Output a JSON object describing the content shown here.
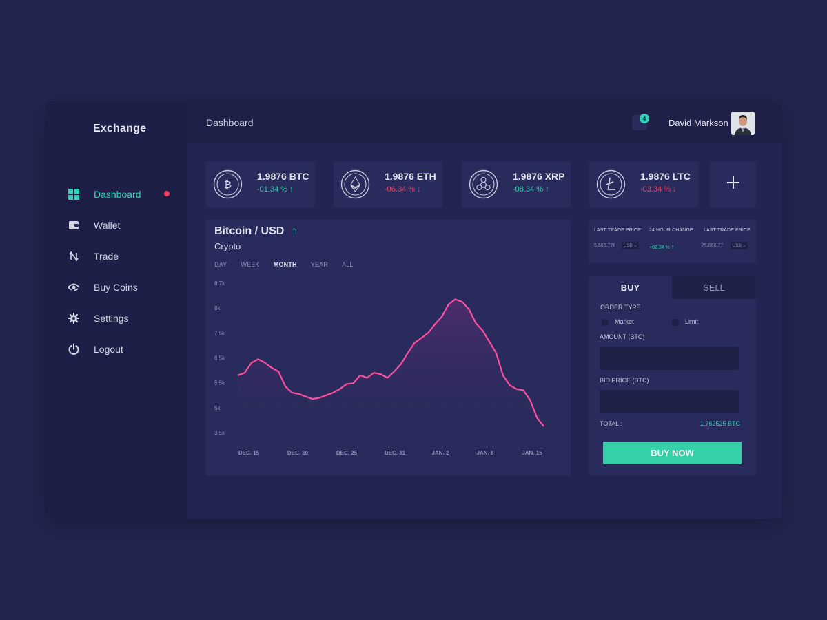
{
  "app": {
    "brand": "Exchange"
  },
  "sidebar": {
    "items": [
      {
        "label": "Dashboard",
        "icon": "grid-icon",
        "active": true
      },
      {
        "label": "Wallet",
        "icon": "wallet-icon"
      },
      {
        "label": "Trade",
        "icon": "trade-arrows-icon"
      },
      {
        "label": "Buy Coins",
        "icon": "eye-coin-icon"
      },
      {
        "label": "Settings",
        "icon": "gear-icon"
      },
      {
        "label": "Logout",
        "icon": "power-icon"
      }
    ]
  },
  "header": {
    "title": "Dashboard",
    "notification_count": "4",
    "user_name": "David Markson"
  },
  "coins": [
    {
      "amount": "1.9876 BTC",
      "change": "-01.34 %",
      "direction": "up",
      "icon": "bitcoin-icon"
    },
    {
      "amount": "1.9876 ETH",
      "change": "-06.34 %",
      "direction": "down",
      "icon": "ethereum-icon"
    },
    {
      "amount": "1.9876 XRP",
      "change": "-08.34 %",
      "direction": "up",
      "icon": "ripple-icon"
    },
    {
      "amount": "1.9876 LTC",
      "change": "-03.34 %",
      "direction": "down",
      "icon": "litecoin-icon"
    }
  ],
  "chart": {
    "title": "Bitcoin / USD",
    "subtitle": "Crypto",
    "ranges": [
      "DAY",
      "WEEK",
      "MONTH",
      "YEAR",
      "ALL"
    ],
    "active_range": "MONTH"
  },
  "chart_data": {
    "type": "area",
    "title": "Bitcoin / USD",
    "subtitle": "Crypto",
    "xlabel": "",
    "ylabel": "",
    "x_ticks": [
      "DEC. 15",
      "DEC. 20",
      "DEC. 25",
      "DEC. 31",
      "JAN. 2",
      "JAN. 8",
      "JAN. 15"
    ],
    "y_ticks": [
      "3.5k",
      "5k",
      "5.5k",
      "6.5k",
      "7.5k",
      "8k",
      "8.7k"
    ],
    "ylim": [
      0,
      6
    ],
    "values": [
      2.3,
      2.4,
      2.8,
      2.95,
      2.8,
      2.6,
      2.45,
      1.85,
      1.6,
      1.55,
      1.45,
      1.35,
      1.4,
      1.5,
      1.6,
      1.75,
      1.95,
      1.98,
      2.3,
      2.2,
      2.4,
      2.35,
      2.2,
      2.45,
      2.75,
      3.2,
      3.6,
      3.8,
      4.0,
      4.35,
      4.65,
      5.15,
      5.35,
      5.25,
      4.95,
      4.4,
      4.1,
      3.65,
      3.2,
      2.3,
      1.9,
      1.75,
      1.7,
      1.3,
      0.6,
      0.25
    ],
    "grid": true,
    "line_color": "#ff4fa1"
  },
  "market_stats": [
    {
      "label": "LAST TRADE PRICE",
      "value": "5,666.776",
      "currency": "USD"
    },
    {
      "label": "24 HOUR CHANGE",
      "value": "+02.34 %"
    },
    {
      "label": "LAST TRADE PRICE",
      "value": "75,666.77",
      "currency": "USD"
    }
  ],
  "trade": {
    "tab_buy": "BUY",
    "tab_sell": "SELL",
    "order_type_label": "ORDER TYPE",
    "option_market": "Market",
    "option_limit": "Limit",
    "amount_label": "AMOUNT (BTC)",
    "bid_label": "BID PRICE (BTC)",
    "total_label": "TOTAL :",
    "total_value": "1.762525 BTC",
    "buy_button": "BUY NOW"
  },
  "colors": {
    "accent": "#35d0b5",
    "negative": "#f23f5c",
    "chart_line": "#ff4fa1",
    "panel": "#282b5b"
  }
}
